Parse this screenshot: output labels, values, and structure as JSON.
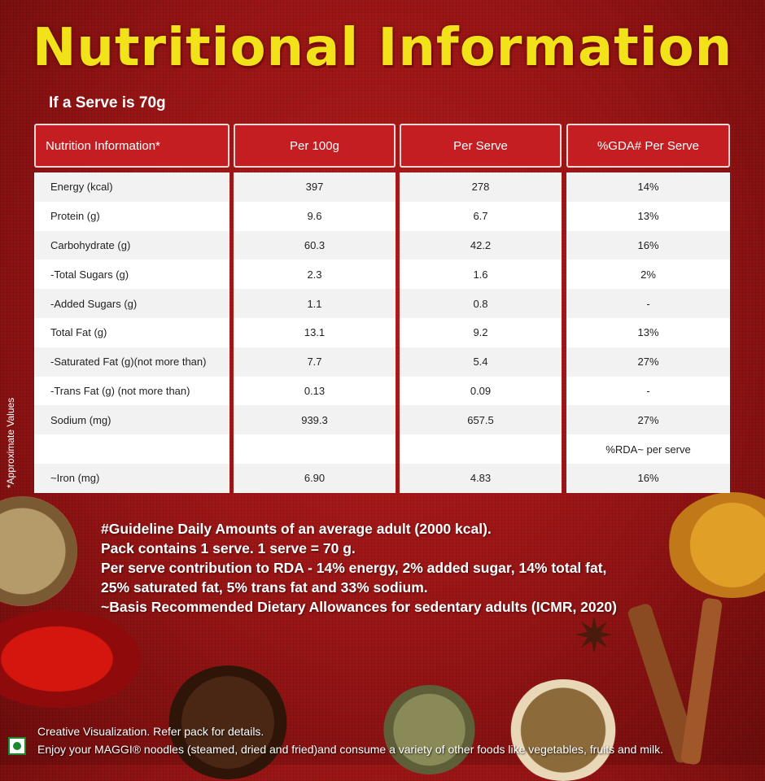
{
  "title": "Nutritional Information",
  "serve_note": "If a Serve is 70g",
  "side_label": "*Approximate Values",
  "table": {
    "headers": [
      "Nutrition Information*",
      "Per 100g",
      "Per Serve",
      "%GDA# Per Serve"
    ],
    "rows": [
      {
        "name": "Energy (kcal)",
        "per100": "397",
        "perserve": "278",
        "gda": "14%"
      },
      {
        "name": "Protein (g)",
        "per100": "9.6",
        "perserve": "6.7",
        "gda": "13%"
      },
      {
        "name": "Carbohydrate (g)",
        "per100": "60.3",
        "perserve": "42.2",
        "gda": "16%"
      },
      {
        "name": " -Total Sugars (g)",
        "per100": "2.3",
        "perserve": "1.6",
        "gda": "2%"
      },
      {
        "name": " -Added Sugars (g)",
        "per100": "1.1",
        "perserve": "0.8",
        "gda": "-"
      },
      {
        "name": "Total Fat (g)",
        "per100": "13.1",
        "perserve": "9.2",
        "gda": "13%"
      },
      {
        "name": " -Saturated Fat (g)(not more than)",
        "per100": "7.7",
        "perserve": "5.4",
        "gda": "27%"
      },
      {
        "name": " -Trans Fat (g) (not more than)",
        "per100": "0.13",
        "perserve": "0.09",
        "gda": "-"
      },
      {
        "name": "Sodium (mg)",
        "per100": "939.3",
        "perserve": "657.5",
        "gda": "27%"
      },
      {
        "name": "",
        "per100": "",
        "perserve": "",
        "gda": "%RDA~ per serve"
      },
      {
        "name": "~Iron (mg)",
        "per100": "6.90",
        "perserve": "4.83",
        "gda": "16%"
      }
    ]
  },
  "notes": [
    "#Guideline Daily Amounts of an average adult  (2000 kcal).",
    "Pack contains 1 serve. 1 serve = 70 g.",
    "Per serve contribution to RDA - 14% energy, 2% added sugar, 14% total fat,",
    "25% saturated fat, 5% trans fat and 33% sodium.",
    "~Basis Recommended Dietary Allowances for sedentary adults (ICMR, 2020)"
  ],
  "footer": [
    "Creative Visualization. Refer pack for details.",
    "Enjoy your MAGGI® noodles (steamed, dried and fried)and consume a variety of other foods like vegetables, fruits and milk."
  ],
  "colors": {
    "title": "#f2e21a",
    "header_bg": "#c41e22",
    "background": "#a01616",
    "veg_mark": "#1b8a2f"
  }
}
